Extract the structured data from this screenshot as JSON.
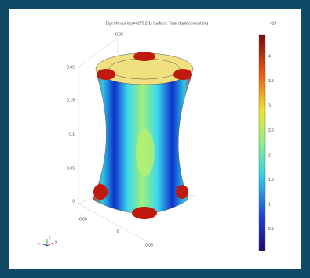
{
  "plot": {
    "title": "Eigenfrequency=4275.2(1)   Surface: Total displacement (m)",
    "colorbar": {
      "unit_label": "×10",
      "labels": [
        "4",
        "3.5",
        "3",
        "2.5",
        "2",
        "1.5",
        "1",
        "0.5"
      ]
    },
    "axis_labels": {
      "top": "0.05",
      "left": [
        "0.05",
        "0.15",
        "0.1",
        "0.05",
        "0"
      ],
      "bottom": [
        "-0.05",
        "0",
        "0.05"
      ]
    },
    "triad": [
      "x",
      "y",
      "z"
    ]
  }
}
